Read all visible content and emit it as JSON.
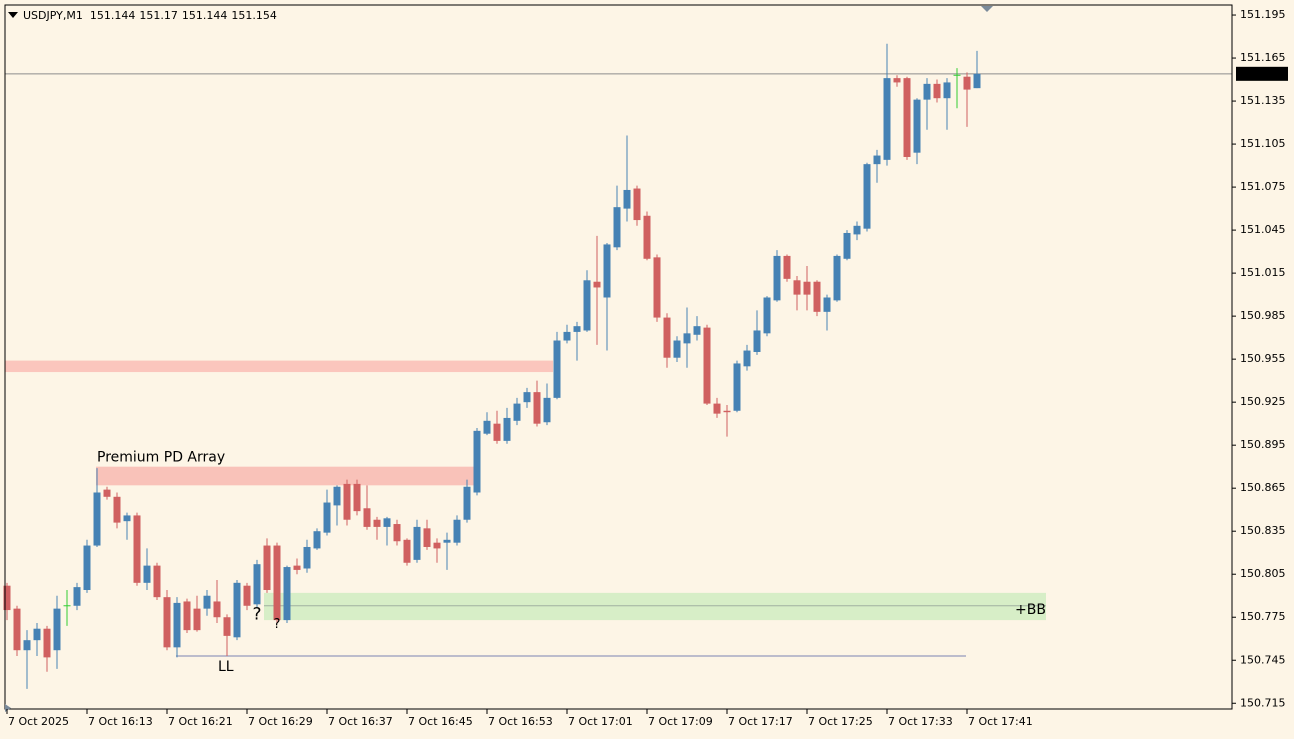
{
  "chart_data": {
    "type": "candlestick",
    "symbol": "USDJPY,M1",
    "up_color": "#4682b4",
    "down_color": "#d06060",
    "doji_color": "#32cd32",
    "background": "#fdf5e6",
    "open": [
      150.797,
      150.781,
      150.752,
      150.759,
      150.767,
      150.752,
      150.783,
      150.783,
      150.794,
      150.825,
      150.864,
      150.859,
      150.842,
      150.846,
      150.799,
      150.811,
      150.789,
      150.754,
      150.786,
      150.781,
      150.781,
      150.786,
      150.775,
      150.761,
      150.797,
      150.784,
      150.825,
      150.825,
      150.773,
      150.811,
      150.809,
      150.823,
      150.834,
      150.853,
      150.868,
      150.868,
      150.851,
      150.843,
      150.838,
      150.84,
      150.829,
      150.815,
      150.837,
      150.827,
      150.827,
      150.827,
      150.843,
      150.862,
      150.903,
      150.91,
      150.898,
      150.912,
      150.925,
      150.932,
      150.911,
      150.928,
      150.968,
      150.974,
      150.975,
      151.009,
      150.998,
      151.033,
      151.06,
      151.074,
      151.055,
      151.026,
      150.984,
      150.956,
      150.966,
      150.972,
      150.977,
      150.924,
      150.919,
      150.919,
      150.95,
      150.96,
      150.973,
      150.996,
      151.027,
      151.01,
      151.009,
      151.009,
      150.988,
      150.996,
      151.025,
      151.042,
      151.046,
      151.091,
      151.094,
      151.151,
      151.151,
      151.099,
      151.136,
      151.147,
      151.137,
      151.153,
      151.152,
      151.144
    ],
    "high": [
      150.799,
      150.783,
      150.766,
      150.771,
      150.769,
      150.79,
      150.794,
      150.799,
      150.829,
      150.879,
      150.866,
      150.862,
      150.848,
      150.848,
      150.823,
      150.813,
      150.794,
      150.789,
      150.788,
      150.79,
      150.794,
      150.801,
      150.777,
      150.801,
      150.799,
      150.815,
      150.83,
      150.827,
      150.811,
      150.816,
      150.829,
      150.837,
      150.864,
      150.867,
      150.871,
      150.871,
      150.867,
      150.845,
      150.845,
      150.843,
      150.83,
      150.843,
      150.843,
      150.83,
      150.834,
      150.846,
      150.871,
      150.907,
      150.918,
      150.919,
      150.921,
      150.928,
      150.935,
      150.94,
      150.938,
      150.974,
      150.979,
      150.981,
      151.017,
      151.041,
      151.036,
      151.076,
      151.111,
      151.076,
      151.058,
      151.028,
      150.987,
      150.971,
      150.991,
      150.985,
      150.979,
      150.928,
      150.923,
      150.954,
      150.965,
      150.989,
      150.999,
      151.031,
      151.028,
      151.013,
      151.02,
      151.01,
      151.0,
      151.028,
      151.045,
      151.051,
      151.092,
      151.101,
      151.175,
      151.153,
      151.152,
      151.137,
      151.151,
      151.15,
      151.151,
      151.158,
      151.155,
      151.17
    ],
    "low": [
      150.773,
      150.748,
      150.725,
      150.748,
      150.737,
      150.739,
      150.769,
      150.78,
      150.792,
      150.824,
      150.857,
      150.837,
      150.829,
      150.797,
      150.794,
      150.787,
      150.752,
      150.747,
      150.764,
      150.765,
      150.776,
      150.771,
      150.748,
      150.759,
      150.78,
      150.782,
      150.792,
      150.771,
      150.771,
      150.805,
      150.806,
      150.822,
      150.832,
      150.839,
      150.839,
      150.846,
      150.836,
      150.829,
      150.825,
      150.825,
      150.811,
      150.813,
      150.822,
      150.813,
      150.808,
      150.825,
      150.841,
      150.86,
      150.902,
      150.896,
      150.896,
      150.909,
      150.921,
      150.908,
      150.909,
      150.927,
      150.966,
      150.954,
      150.974,
      150.965,
      150.961,
      151.031,
      151.051,
      151.048,
      151.024,
      150.981,
      150.949,
      150.953,
      150.949,
      150.968,
      150.923,
      150.914,
      150.901,
      150.918,
      150.947,
      150.958,
      150.971,
      150.995,
      151.009,
      150.989,
      150.989,
      150.985,
      150.975,
      150.995,
      151.024,
      151.038,
      151.044,
      151.078,
      151.09,
      151.145,
      151.094,
      151.091,
      151.115,
      151.134,
      151.115,
      151.13,
      151.117,
      151.144
    ],
    "close": [
      150.78,
      150.752,
      150.759,
      150.767,
      150.747,
      150.781,
      150.783,
      150.796,
      150.825,
      150.862,
      150.859,
      150.841,
      150.846,
      150.799,
      150.811,
      150.789,
      150.754,
      150.785,
      150.766,
      150.766,
      150.79,
      150.775,
      150.762,
      150.799,
      150.783,
      150.812,
      150.794,
      150.773,
      150.81,
      150.808,
      150.824,
      150.835,
      150.855,
      150.866,
      150.843,
      150.849,
      150.838,
      150.838,
      150.844,
      150.828,
      150.813,
      150.838,
      150.824,
      150.823,
      150.829,
      150.843,
      150.866,
      150.905,
      150.912,
      150.898,
      150.914,
      150.924,
      150.932,
      150.91,
      150.928,
      150.968,
      150.974,
      150.978,
      151.01,
      151.005,
      151.035,
      151.061,
      151.073,
      151.052,
      151.025,
      150.984,
      150.956,
      150.968,
      150.973,
      150.978,
      150.924,
      150.917,
      150.918,
      150.952,
      150.961,
      150.975,
      150.998,
      151.027,
      151.011,
      151.0,
      151.0,
      150.988,
      150.998,
      151.027,
      151.043,
      151.048,
      151.091,
      151.097,
      151.151,
      151.148,
      151.096,
      151.136,
      151.147,
      151.137,
      151.148,
      151.153,
      151.143,
      151.154
    ],
    "current_price": 151.154,
    "current_line_color": "#8c8c8c",
    "xlim": [
      -0.2,
      122.5
    ],
    "xticks": [
      {
        "value": 0,
        "label": "7 Oct 2025"
      },
      {
        "value": 8,
        "label": "7 Oct 16:13"
      },
      {
        "value": 16,
        "label": "7 Oct 16:21"
      },
      {
        "value": 24,
        "label": "7 Oct 16:29"
      },
      {
        "value": 32,
        "label": "7 Oct 16:37"
      },
      {
        "value": 40,
        "label": "7 Oct 16:45"
      },
      {
        "value": 48,
        "label": "7 Oct 16:53"
      },
      {
        "value": 56,
        "label": "7 Oct 17:01"
      },
      {
        "value": 64,
        "label": "7 Oct 17:09"
      },
      {
        "value": 72,
        "label": "7 Oct 17:17"
      },
      {
        "value": 80,
        "label": "7 Oct 17:25"
      },
      {
        "value": 88,
        "label": "7 Oct 17:33"
      },
      {
        "value": 96,
        "label": "7 Oct 17:41"
      }
    ],
    "ylim": [
      150.711,
      151.202
    ],
    "yticks": [
      151.195,
      151.165,
      151.135,
      151.105,
      151.075,
      151.045,
      151.015,
      150.985,
      150.955,
      150.925,
      150.895,
      150.865,
      150.835,
      150.805,
      150.775,
      150.745,
      150.715
    ],
    "supply_zone": {
      "top": 150.954,
      "bottom": 150.946,
      "start": -0.2,
      "end": 54.6,
      "color": "#fbc6bd"
    },
    "premium_pd_array": {
      "label": "Premium PD Array",
      "top": 150.88,
      "bottom": 150.867,
      "start": 8.9,
      "end": 46.7,
      "color": "#f9c2b9",
      "label_color": "#b4b4b4"
    },
    "bb_zone": {
      "label": "+BB",
      "top": 150.792,
      "bottom": 150.773,
      "mid": 150.783,
      "start": 25.7,
      "end": 103.9,
      "color": "#d7eec7",
      "label_color": "#3ccc3c"
    },
    "ll_line": {
      "label": "LL",
      "price": 150.748,
      "start": 16.9,
      "end": 95.9,
      "color": "#bcbccc",
      "label_color": "#b4b4b4"
    },
    "markers": [
      {
        "label": "?",
        "index": 25,
        "price": 150.777,
        "color": "#3ccc3c"
      },
      {
        "label": "?",
        "index": 27,
        "price": 150.77,
        "color": "#f0a020"
      }
    ]
  }
}
